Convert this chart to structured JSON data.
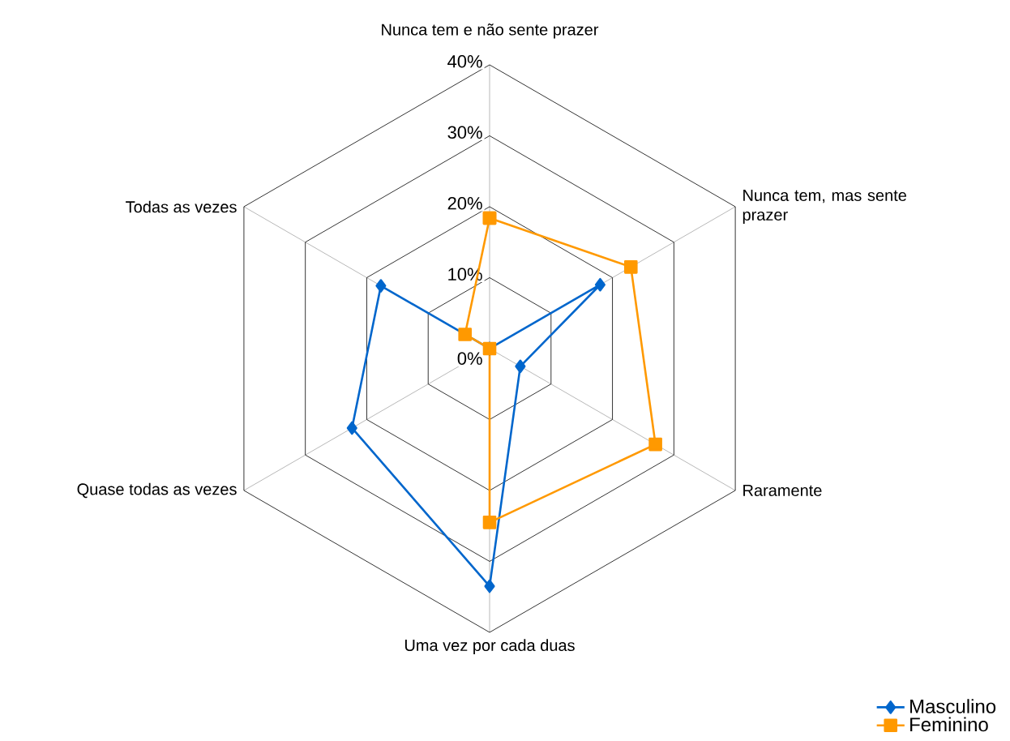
{
  "chart_data": {
    "type": "radar",
    "categories": [
      "Nunca tem e não sente prazer",
      "Nunca tem, mas sente prazer",
      "Raramente",
      "Uma vez por cada duas",
      "Quase todas as vezes",
      "Todas as vezes"
    ],
    "series": [
      {
        "name": "Masculino",
        "color": "#0066cc",
        "marker": "diamond",
        "values": [
          0,
          18,
          5,
          33.5,
          22.4,
          17.7
        ]
      },
      {
        "name": "Feminino",
        "color": "#ff9900",
        "marker": "square",
        "values": [
          18.4,
          23,
          27,
          24.5,
          0,
          4
        ]
      }
    ],
    "ylim": [
      0,
      40
    ],
    "yticks": [
      {
        "value": 0,
        "label": "0%"
      },
      {
        "value": 10,
        "label": "10%"
      },
      {
        "value": 20,
        "label": "20%"
      },
      {
        "value": 30,
        "label": "30%"
      },
      {
        "value": 40,
        "label": "40%"
      }
    ],
    "grid": true,
    "legend": "bottom right"
  }
}
